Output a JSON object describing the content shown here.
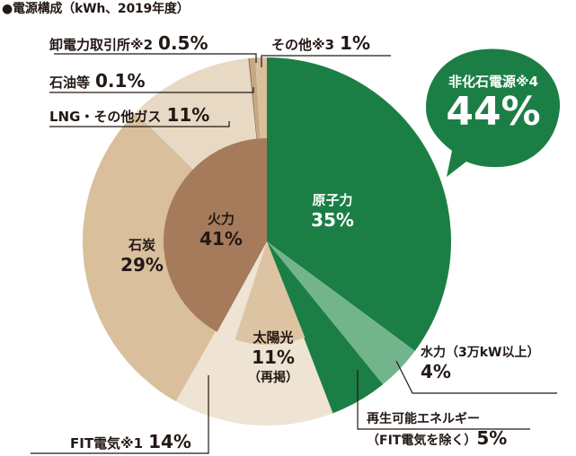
{
  "chart_data": {
    "type": "pie",
    "title": "●電源構成（kWh、2019年度）",
    "inner": [
      {
        "label": "原子力",
        "value": 35
      },
      {
        "label": "太陽光",
        "value": 11,
        "note": "（再掲）"
      },
      {
        "label": "火力",
        "value": 41
      }
    ],
    "outer": [
      {
        "label": "原子力",
        "value": 35,
        "color": "#1b7f45"
      },
      {
        "label": "水力（3万kW以上）",
        "value": 4,
        "color": "#72b58d"
      },
      {
        "label": "再生可能エネルギー（FIT電気を除く）",
        "value": 5,
        "color": "#1b7f45"
      },
      {
        "label": "FIT電気※1",
        "value": 14,
        "color": "#efe3d3"
      },
      {
        "label": "石炭",
        "value": 29,
        "color": "#d9bf9c"
      },
      {
        "label": "LNG・その他ガス",
        "value": 11,
        "color": "#e8d9c4"
      },
      {
        "label": "石油等",
        "value": 0.1,
        "color": "#8c6f4f"
      },
      {
        "label": "卸電力取引所※2",
        "value": 0.5,
        "color": "#c5a985"
      },
      {
        "label": "その他※3",
        "value": 1,
        "color": "#d9bf9c"
      }
    ],
    "callout": {
      "label": "非化石電源※4",
      "value": "44%"
    }
  },
  "labels": {
    "nuclear_name": "原子力",
    "nuclear_pct": "35%",
    "thermal_name": "火力",
    "thermal_pct": "41%",
    "solar_name": "太陽光",
    "solar_pct": "11%",
    "solar_note": "（再掲）",
    "coal_name": "石炭",
    "coal_pct": "29%",
    "hydro_name": "水力（3万kW以上）",
    "hydro_pct": "4%",
    "renew_name1": "再生可能エネルギー",
    "renew_name2": "（FIT電気を除く）",
    "renew_pct": "5%",
    "fit_name": "FIT電気※1",
    "fit_pct": "14%",
    "lng_name": "LNG・その他ガス",
    "lng_pct": "11%",
    "oil_name": "石油等",
    "oil_pct": "0.1%",
    "market_name": "卸電力取引所※2",
    "market_pct": "0.5%",
    "other_name": "その他※3",
    "other_pct": "1%",
    "callout_name": "非化石電源※4",
    "callout_pct": "44%"
  },
  "colors": {
    "green": "#1b7f45",
    "light_green": "#72b58d",
    "thermal": "#a67b5b",
    "solar_inner": "#dcc4a3",
    "outline": "#231815"
  }
}
